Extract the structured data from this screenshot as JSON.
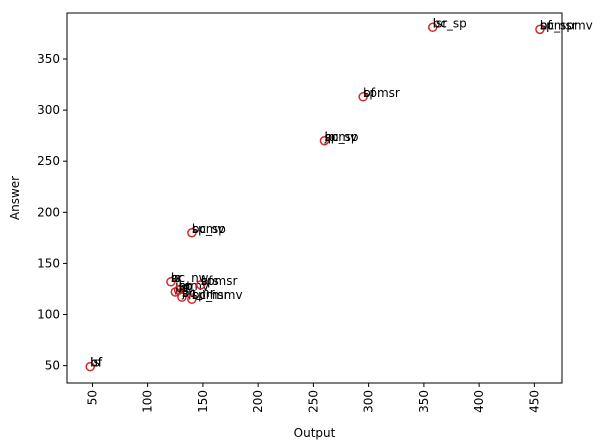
{
  "chart_data": {
    "type": "scatter",
    "title": "",
    "xlabel": "Output",
    "ylabel": "Answer",
    "xlim": [
      27,
      475
    ],
    "ylim": [
      33,
      395
    ],
    "xticks": [
      50,
      100,
      150,
      200,
      250,
      300,
      350,
      400,
      450
    ],
    "yticks": [
      50,
      100,
      150,
      200,
      250,
      300,
      350
    ],
    "x_tick_rotation": 90,
    "grid": false,
    "legend": "none",
    "marker": "hollow-circle",
    "marker_color": "#d62728",
    "points": [
      {
        "x": 48,
        "y": 49,
        "labels": [
          "bf",
          "ls",
          "hf"
        ]
      },
      {
        "x": 121,
        "y": 132,
        "labels": [
          "ls",
          "sr",
          "bc_nw"
        ]
      },
      {
        "x": 125,
        "y": 122,
        "labels": [
          "ljs",
          "jp",
          "bc"
        ]
      },
      {
        "x": 128,
        "y": 124,
        "labels": [
          "sp",
          "mmv",
          "bt"
        ]
      },
      {
        "x": 131,
        "y": 117,
        "labels": [
          "bc_nr",
          "jl",
          "sp"
        ]
      },
      {
        "x": 140,
        "y": 115,
        "labels": [
          "bc_mmv",
          "spmsr"
        ]
      },
      {
        "x": 148,
        "y": 129,
        "labels": [
          "spmsr",
          "bfs"
        ]
      },
      {
        "x": 140,
        "y": 180,
        "labels": [
          "bc_sp",
          "spmv"
        ]
      },
      {
        "x": 260,
        "y": 270,
        "labels": [
          "bc_sp",
          "spmv",
          "jp"
        ]
      },
      {
        "x": 295,
        "y": 313,
        "labels": [
          "bf",
          "spmsr"
        ]
      },
      {
        "x": 358,
        "y": 381,
        "labels": [
          "bc_sp",
          "lsr"
        ]
      },
      {
        "x": 455,
        "y": 379,
        "labels": [
          "bc_spmv",
          "hf",
          "spmsr"
        ]
      }
    ]
  }
}
